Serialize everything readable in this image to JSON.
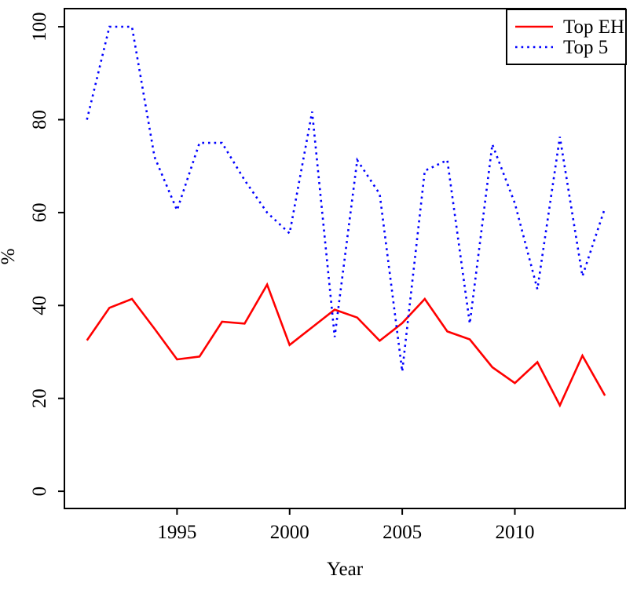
{
  "chart_data": {
    "type": "line",
    "title": "",
    "xlabel": "Year",
    "ylabel": "%",
    "x": [
      1991,
      1992,
      1993,
      1994,
      1995,
      1996,
      1997,
      1998,
      1999,
      2000,
      2001,
      2002,
      2003,
      2004,
      2005,
      2006,
      2007,
      2008,
      2009,
      2010,
      2011,
      2012,
      2013,
      2014
    ],
    "series": [
      {
        "name": "Top EH",
        "color": "#ff0000",
        "style": "solid",
        "values": [
          32.5,
          39.5,
          41.4,
          35.0,
          28.4,
          29.0,
          36.5,
          36.1,
          44.5,
          31.5,
          35.3,
          39.1,
          37.4,
          32.4,
          36.2,
          41.4,
          34.4,
          32.7,
          26.7,
          23.3,
          27.8,
          18.5,
          29.2,
          20.6
        ]
      },
      {
        "name": "Top 5",
        "color": "#0000ff",
        "style": "dotted",
        "values": [
          80.0,
          100.0,
          100.0,
          72.0,
          60.5,
          75.0,
          75.0,
          67.0,
          60.0,
          55.5,
          81.7,
          33.2,
          71.3,
          64.0,
          25.8,
          69.0,
          71.3,
          36.1,
          74.7,
          62.0,
          43.5,
          76.3,
          46.3,
          61.0
        ]
      }
    ],
    "x_ticks": [
      1995,
      2000,
      2005,
      2010
    ],
    "y_ticks": [
      0,
      20,
      40,
      60,
      80,
      100
    ],
    "xlim": [
      1990.0,
      2014.9
    ],
    "ylim": [
      -3.7,
      103.9
    ],
    "grid": false,
    "legend_position": "topright"
  }
}
